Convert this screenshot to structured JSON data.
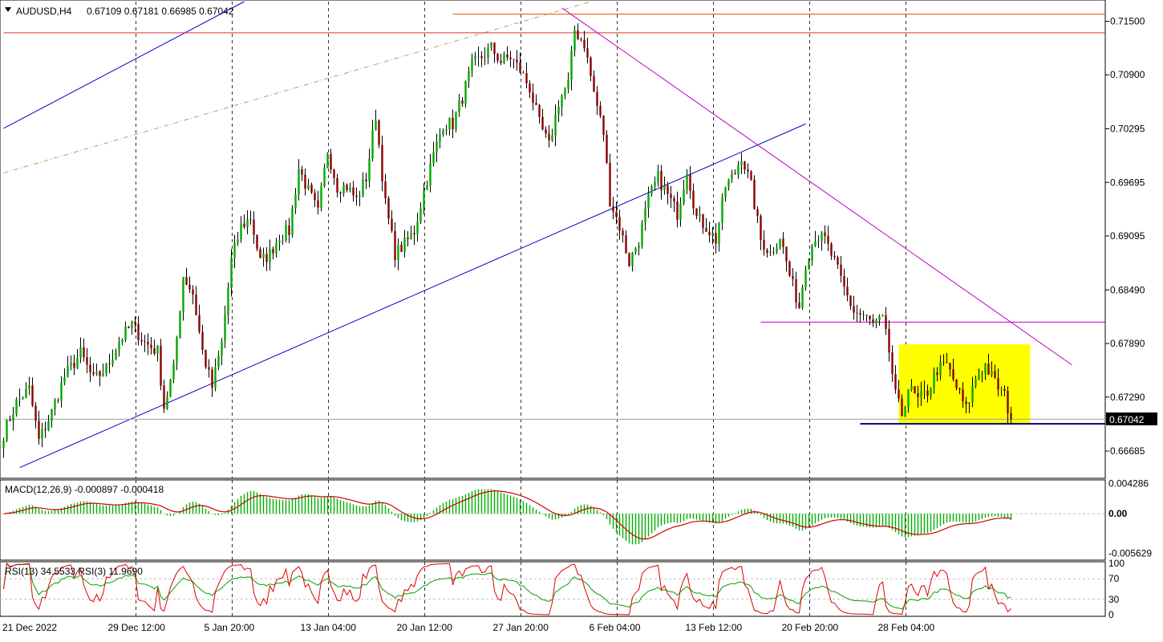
{
  "header": {
    "title": "AUDUSD,H4",
    "ohlc": "0.67109 0.67181 0.66985 0.67042",
    "collapse_icon": "triangle-down-icon"
  },
  "chart_data": [
    {
      "type": "candlestick",
      "symbol": "AUDUSD",
      "timeframe": "H4",
      "title": "AUDUSD,H4 0.67109 0.67181 0.66985 0.67042",
      "last": {
        "open": 0.67109,
        "high": 0.67181,
        "low": 0.66985,
        "close": 0.67042
      },
      "current_price_label": "0.67042",
      "ylim": [
        0.6638,
        0.7172
      ],
      "yticks": [
        0.66685,
        0.6729,
        0.6789,
        0.6849,
        0.69095,
        0.69695,
        0.70295,
        0.709,
        0.715
      ],
      "ytick_labels": [
        "0.66685",
        "0.67290",
        "0.67890",
        "0.68490",
        "0.69095",
        "0.69695",
        "0.70295",
        "0.70900",
        "0.71500"
      ],
      "xticks": [
        {
          "bar": 0,
          "label": "21 Dec 2022"
        },
        {
          "bar": 41,
          "label": "29 Dec 12:00"
        },
        {
          "bar": 71,
          "label": "5 Jan 20:00"
        },
        {
          "bar": 101,
          "label": "13 Jan 04:00"
        },
        {
          "bar": 131,
          "label": "20 Jan 12:00"
        },
        {
          "bar": 161,
          "label": "27 Jan 20:00"
        },
        {
          "bar": 191,
          "label": "6 Feb 04:00"
        },
        {
          "bar": 221,
          "label": "13 Feb 12:00"
        },
        {
          "bar": 251,
          "label": "20 Feb 20:00"
        },
        {
          "bar": 281,
          "label": "28 Feb 04:00"
        }
      ],
      "grid_vertical": "dashed at x ticks",
      "anchors": [
        [
          0,
          0.6688
        ],
        [
          4,
          0.6723
        ],
        [
          8,
          0.6738
        ],
        [
          11,
          0.668
        ],
        [
          15,
          0.6712
        ],
        [
          19,
          0.6752
        ],
        [
          24,
          0.6778
        ],
        [
          28,
          0.6748
        ],
        [
          32,
          0.6761
        ],
        [
          36,
          0.6792
        ],
        [
          40,
          0.681
        ],
        [
          44,
          0.679
        ],
        [
          48,
          0.678
        ],
        [
          50,
          0.6718
        ],
        [
          53,
          0.676
        ],
        [
          56,
          0.6865
        ],
        [
          59,
          0.6845
        ],
        [
          62,
          0.678
        ],
        [
          65,
          0.674
        ],
        [
          68,
          0.679
        ],
        [
          71,
          0.6882
        ],
        [
          74,
          0.692
        ],
        [
          77,
          0.693
        ],
        [
          80,
          0.688
        ],
        [
          83,
          0.689
        ],
        [
          86,
          0.691
        ],
        [
          89,
          0.6915
        ],
        [
          92,
          0.6985
        ],
        [
          95,
          0.696
        ],
        [
          98,
          0.6935
        ],
        [
          101,
          0.7005
        ],
        [
          104,
          0.6965
        ],
        [
          107,
          0.6965
        ],
        [
          110,
          0.695
        ],
        [
          113,
          0.6975
        ],
        [
          116,
          0.7045
        ],
        [
          119,
          0.6945
        ],
        [
          122,
          0.689
        ],
        [
          125,
          0.69
        ],
        [
          128,
          0.6915
        ],
        [
          131,
          0.696
        ],
        [
          134,
          0.7
        ],
        [
          137,
          0.7035
        ],
        [
          140,
          0.7035
        ],
        [
          143,
          0.7065
        ],
        [
          146,
          0.71
        ],
        [
          149,
          0.711
        ],
        [
          152,
          0.712
        ],
        [
          155,
          0.7105
        ],
        [
          158,
          0.711
        ],
        [
          161,
          0.7095
        ],
        [
          164,
          0.7075
        ],
        [
          167,
          0.7035
        ],
        [
          170,
          0.701
        ],
        [
          173,
          0.706
        ],
        [
          176,
          0.708
        ],
        [
          178,
          0.714
        ],
        [
          181,
          0.7125
        ],
        [
          184,
          0.707
        ],
        [
          187,
          0.7025
        ],
        [
          189,
          0.695
        ],
        [
          192,
          0.692
        ],
        [
          195,
          0.688
        ],
        [
          198,
          0.6905
        ],
        [
          201,
          0.695
        ],
        [
          204,
          0.6975
        ],
        [
          207,
          0.6955
        ],
        [
          210,
          0.6935
        ],
        [
          213,
          0.6985
        ],
        [
          216,
          0.693
        ],
        [
          219,
          0.692
        ],
        [
          222,
          0.6905
        ],
        [
          225,
          0.6965
        ],
        [
          228,
          0.698
        ],
        [
          230,
          0.7
        ],
        [
          233,
          0.6965
        ],
        [
          236,
          0.6905
        ],
        [
          239,
          0.689
        ],
        [
          242,
          0.691
        ],
        [
          245,
          0.6865
        ],
        [
          248,
          0.683
        ],
        [
          250,
          0.688
        ],
        [
          253,
          0.691
        ],
        [
          256,
          0.6905
        ],
        [
          259,
          0.688
        ],
        [
          262,
          0.685
        ],
        [
          265,
          0.6825
        ],
        [
          268,
          0.682
        ],
        [
          271,
          0.681
        ],
        [
          274,
          0.6815
        ],
        [
          276,
          0.678
        ],
        [
          278,
          0.673
        ],
        [
          280,
          0.671
        ],
        [
          282,
          0.674
        ],
        [
          285,
          0.6725
        ],
        [
          288,
          0.6735
        ],
        [
          291,
          0.676
        ],
        [
          294,
          0.6765
        ],
        [
          297,
          0.674
        ],
        [
          300,
          0.6715
        ],
        [
          303,
          0.675
        ],
        [
          306,
          0.6765
        ],
        [
          309,
          0.6745
        ],
        [
          312,
          0.673
        ],
        [
          314,
          0.6704
        ]
      ],
      "drawn_lines": [
        {
          "name": "upper-channel-line",
          "color": "#0000c8",
          "from": [
            0,
            0.703
          ],
          "to": [
            75,
            0.7172
          ]
        },
        {
          "name": "lower-channel-line",
          "color": "#0000c8",
          "from": [
            5,
            0.665
          ],
          "to": [
            250,
            0.7035
          ]
        },
        {
          "name": "dotted-trend-line",
          "color": "#b8a060",
          "style": "dashdot",
          "from": [
            0,
            0.698
          ],
          "to": [
            183,
            0.7172
          ]
        },
        {
          "name": "resistance-line-upper",
          "color": "#e05000",
          "from": [
            140,
            0.7158
          ],
          "to": [
            345,
            0.7158
          ]
        },
        {
          "name": "resistance-line",
          "color": "#e03030",
          "from": [
            0,
            0.7137
          ],
          "to": [
            345,
            0.7137
          ]
        },
        {
          "name": "descending-trend-line",
          "color": "#c000c0",
          "from": [
            174,
            0.7165
          ],
          "to": [
            333,
            0.6765
          ]
        },
        {
          "name": "range-top-line",
          "color": "#c000c0",
          "from": [
            236,
            0.6813
          ],
          "to": [
            345,
            0.6813
          ]
        },
        {
          "name": "support-line",
          "color": "#000080",
          "width": 2,
          "from": [
            267,
            0.6699
          ],
          "to": [
            345,
            0.6699
          ]
        },
        {
          "name": "last-price-line",
          "color": "#a0a0a0",
          "from": [
            0,
            0.67042
          ],
          "to": [
            345,
            0.67042
          ]
        }
      ],
      "highlight_box": {
        "color": "#ffff00",
        "from": [
          279,
          0.6788
        ],
        "to": [
          320,
          0.6699
        ]
      },
      "colors": {
        "bull_body": "#00aa00",
        "bear_body": "#8b0000",
        "wick": "#000000"
      }
    },
    {
      "type": "histogram+line",
      "indicator": "MACD",
      "label": "MACD(12,26,9) -0.000897 -0.000418",
      "main": -0.000897,
      "signal": -0.000418,
      "ylim": [
        -0.0066,
        0.0048
      ],
      "yticks": [
        0.004286,
        0.0,
        -0.005629
      ],
      "ytick_labels": [
        "0.004286",
        "0.00",
        "-0.005629"
      ],
      "colors": {
        "histogram": "#00b000",
        "signal": "#d00000"
      }
    },
    {
      "type": "line",
      "indicator": "RSI",
      "label": "RSI(13) 34.5533 RSI(3) 11.9690",
      "series": [
        {
          "name": "RSI(13)",
          "last": 34.5533,
          "color": "#00a000"
        },
        {
          "name": "RSI(3)",
          "last": 11.969,
          "color": "#e00000"
        }
      ],
      "ylim": [
        0,
        100
      ],
      "yticks": [
        100,
        70,
        30,
        0
      ],
      "ytick_labels": [
        "100",
        "70",
        "30",
        "0"
      ]
    }
  ]
}
